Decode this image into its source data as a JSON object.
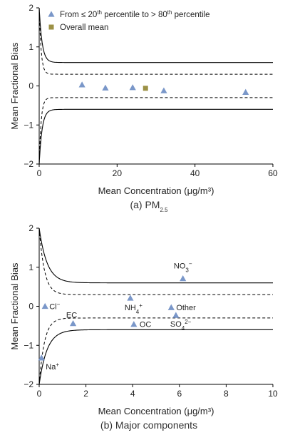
{
  "colors": {
    "triangle": "#7a97c9",
    "square": "#9c9146",
    "curve": "#000000"
  },
  "chart_data": [
    {
      "type": "scatter",
      "caption_main": "(a) PM",
      "caption_sub": "2.5",
      "xlabel": "Mean Concentration (μg/m³)",
      "ylabel": "Mean Fractional Bias",
      "xlim": [
        0,
        60
      ],
      "ylim": [
        -2,
        2
      ],
      "xticks": [
        0,
        20,
        40,
        60
      ],
      "yticks": [
        -2,
        -1,
        0,
        1,
        2
      ],
      "legend": {
        "position": "top-right",
        "items": [
          {
            "marker": "triangle",
            "parts": [
              "From ≤ 20",
              "th",
              " percentile to > 80",
              "th",
              " percentile"
            ]
          },
          {
            "marker": "square",
            "parts": [
              "Overall mean"
            ]
          }
        ]
      },
      "series": [
        {
          "marker": "triangle",
          "points": [
            [
              11,
              0.03
            ],
            [
              17,
              -0.05
            ],
            [
              24,
              -0.04
            ],
            [
              32,
              -0.12
            ],
            [
              53,
              -0.16
            ]
          ]
        },
        {
          "marker": "square",
          "points": [
            [
              27.3,
              -0.06
            ]
          ]
        }
      ],
      "bounds": [
        {
          "style": "solid",
          "fn": "goal_upper"
        },
        {
          "style": "solid",
          "fn": "goal_lower"
        },
        {
          "style": "dashed",
          "fn": "criteria_upper"
        },
        {
          "style": "dashed",
          "fn": "criteria_lower"
        }
      ]
    },
    {
      "type": "scatter",
      "caption_main": "(b) Major components",
      "caption_sub": "",
      "xlabel": "Mean Concentration (μg/m³)",
      "ylabel": "Mean Fractional Bias",
      "xlim": [
        0,
        10
      ],
      "ylim": [
        -2,
        2
      ],
      "xticks": [
        0,
        2,
        4,
        6,
        8,
        10
      ],
      "yticks": [
        -2,
        -1,
        0,
        1,
        2
      ],
      "series": [
        {
          "marker": "triangle",
          "points": [
            {
              "x": 0.25,
              "y": 0.0,
              "label": "Cl",
              "sup": "−"
            },
            {
              "x": 0.1,
              "y": -1.32,
              "label": "Na",
              "sup": "+"
            },
            {
              "x": 1.45,
              "y": -0.44,
              "label": "EC",
              "sup": ""
            },
            {
              "x": 3.9,
              "y": 0.21,
              "label": "NH",
              "sub": "4",
              "sup": "+"
            },
            {
              "x": 4.05,
              "y": -0.46,
              "label": "OC",
              "sup": ""
            },
            {
              "x": 6.15,
              "y": 0.71,
              "label": "NO",
              "sub": "3",
              "sup": "−"
            },
            {
              "x": 5.65,
              "y": -0.03,
              "label": "Other",
              "sup": ""
            },
            {
              "x": 5.85,
              "y": -0.23,
              "label": "SO",
              "sub": "4",
              "sup": "2−"
            }
          ]
        }
      ],
      "bounds": [
        {
          "style": "solid",
          "fn": "goal_upper"
        },
        {
          "style": "solid",
          "fn": "goal_lower"
        },
        {
          "style": "dashed",
          "fn": "criteria_upper"
        },
        {
          "style": "dashed",
          "fn": "criteria_lower"
        }
      ]
    }
  ]
}
